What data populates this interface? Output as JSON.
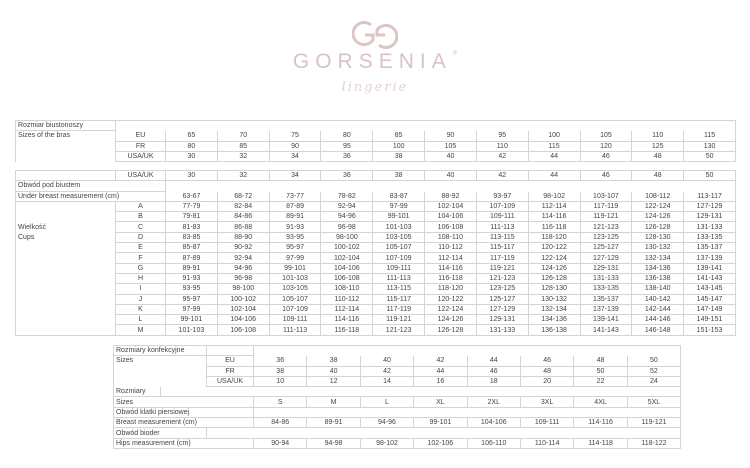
{
  "logo": {
    "monogram": "GG",
    "brand": "GORSENIA",
    "registered": "®",
    "tagline": "lingerie",
    "color": "#d9c3c2"
  },
  "bra_sizes": {
    "title_pl": "Rozmiar biustonoszy",
    "title_en": "Sizes of the bras",
    "rows": [
      {
        "system": "EU",
        "values": [
          "65",
          "70",
          "75",
          "80",
          "85",
          "90",
          "95",
          "100",
          "105",
          "110",
          "115"
        ]
      },
      {
        "system": "FR",
        "values": [
          "80",
          "85",
          "90",
          "95",
          "100",
          "105",
          "110",
          "115",
          "120",
          "125",
          "130"
        ]
      },
      {
        "system": "USA/UK",
        "values": [
          "30",
          "32",
          "34",
          "36",
          "38",
          "40",
          "42",
          "44",
          "46",
          "48",
          "50"
        ]
      }
    ]
  },
  "cups": {
    "header_system": "USA/UK",
    "header_values": [
      "30",
      "32",
      "34",
      "36",
      "38",
      "40",
      "42",
      "44",
      "46",
      "48",
      "50"
    ],
    "under_pl": "Obwód pod biustem",
    "under_en": "Under breast measurement (cm)",
    "under_values": [
      "63-67",
      "68-72",
      "73-77",
      "78-82",
      "83-87",
      "88-92",
      "93-97",
      "98-102",
      "103-107",
      "108-112",
      "113-117"
    ],
    "cups_pl": "Wielkość",
    "cups_en": "Cups",
    "rows": [
      {
        "cup": "A",
        "values": [
          "77-79",
          "82-84",
          "87-89",
          "92-94",
          "97-99",
          "102-104",
          "107-109",
          "112-114",
          "117-119",
          "122-124",
          "127-129"
        ]
      },
      {
        "cup": "B",
        "values": [
          "79-81",
          "84-86",
          "89-91",
          "94-96",
          "99-101",
          "104-106",
          "109-111",
          "114-116",
          "119-121",
          "124-126",
          "129-131"
        ]
      },
      {
        "cup": "C",
        "values": [
          "81-83",
          "86-88",
          "91-93",
          "96-98",
          "101-103",
          "106-108",
          "111-113",
          "116-118",
          "121-123",
          "126-128",
          "131-133"
        ]
      },
      {
        "cup": "D",
        "values": [
          "83-85",
          "88-90",
          "93-95",
          "98-100",
          "103-105",
          "108-110",
          "113-115",
          "118-120",
          "123-125",
          "128-130",
          "133-135"
        ]
      },
      {
        "cup": "E",
        "values": [
          "85-87",
          "90-92",
          "95-97",
          "100-102",
          "105-107",
          "110-112",
          "115-117",
          "120-122",
          "125-127",
          "130-132",
          "135-137"
        ]
      },
      {
        "cup": "F",
        "values": [
          "87-89",
          "92-94",
          "97-99",
          "102-104",
          "107-109",
          "112-114",
          "117-119",
          "122-124",
          "127-129",
          "132-134",
          "137-139"
        ]
      },
      {
        "cup": "G",
        "values": [
          "89-91",
          "94-96",
          "99-101",
          "104-106",
          "109-111",
          "114-116",
          "119-121",
          "124-126",
          "129-131",
          "134-136",
          "139-141"
        ]
      },
      {
        "cup": "H",
        "values": [
          "91-93",
          "96-98",
          "101-103",
          "106-108",
          "111-113",
          "116-118",
          "121-123",
          "126-128",
          "131-133",
          "136-138",
          "141-143"
        ]
      },
      {
        "cup": "I",
        "values": [
          "93-95",
          "98-100",
          "103-105",
          "108-110",
          "113-115",
          "118-120",
          "123-125",
          "128-130",
          "133-135",
          "138-140",
          "143-145"
        ]
      },
      {
        "cup": "J",
        "values": [
          "95-97",
          "100-102",
          "105-107",
          "110-112",
          "115-117",
          "120-122",
          "125-127",
          "130-132",
          "135-137",
          "140-142",
          "145-147"
        ]
      },
      {
        "cup": "K",
        "values": [
          "97-99",
          "102-104",
          "107-109",
          "112-114",
          "117-119",
          "122-124",
          "127-129",
          "132-134",
          "137-139",
          "142-144",
          "147-149"
        ]
      },
      {
        "cup": "L",
        "values": [
          "99-101",
          "104-106",
          "109-111",
          "114-116",
          "119-121",
          "124-126",
          "129-131",
          "134-136",
          "139-141",
          "144-146",
          "149-151"
        ]
      },
      {
        "cup": "M",
        "values": [
          "101-103",
          "106-108",
          "111-113",
          "116-118",
          "121-123",
          "126-128",
          "131-133",
          "136-138",
          "141-143",
          "146-148",
          "151-153"
        ]
      }
    ]
  },
  "clothing": {
    "title_pl": "Rozmiary konfekcyjne",
    "title_en": "Sizes",
    "rows": [
      {
        "system": "EU",
        "values": [
          "36",
          "38",
          "40",
          "42",
          "44",
          "46",
          "48",
          "50"
        ]
      },
      {
        "system": "FR",
        "values": [
          "38",
          "40",
          "42",
          "44",
          "46",
          "48",
          "50",
          "52"
        ]
      },
      {
        "system": "USA/UK",
        "values": [
          "10",
          "12",
          "14",
          "16",
          "18",
          "20",
          "22",
          "24"
        ]
      }
    ],
    "letter_pl": "Rozmiary",
    "letter_en": "Sizes",
    "letter_values": [
      "S",
      "M",
      "L",
      "XL",
      "2XL",
      "3XL",
      "4XL",
      "5XL"
    ],
    "breast_pl": "Obwód klatki piersiowej",
    "breast_en": "Breast measurement (cm)",
    "breast_values": [
      "84-86",
      "89-91",
      "94-96",
      "99-101",
      "104-106",
      "109-111",
      "114-116",
      "119-121"
    ],
    "hips_pl": "Obwód bioder",
    "hips_en": "Hips measurement (cm)",
    "hips_values": [
      "90-94",
      "94-98",
      "98-102",
      "102-106",
      "106-110",
      "110-114",
      "114-118",
      "118-122"
    ]
  }
}
